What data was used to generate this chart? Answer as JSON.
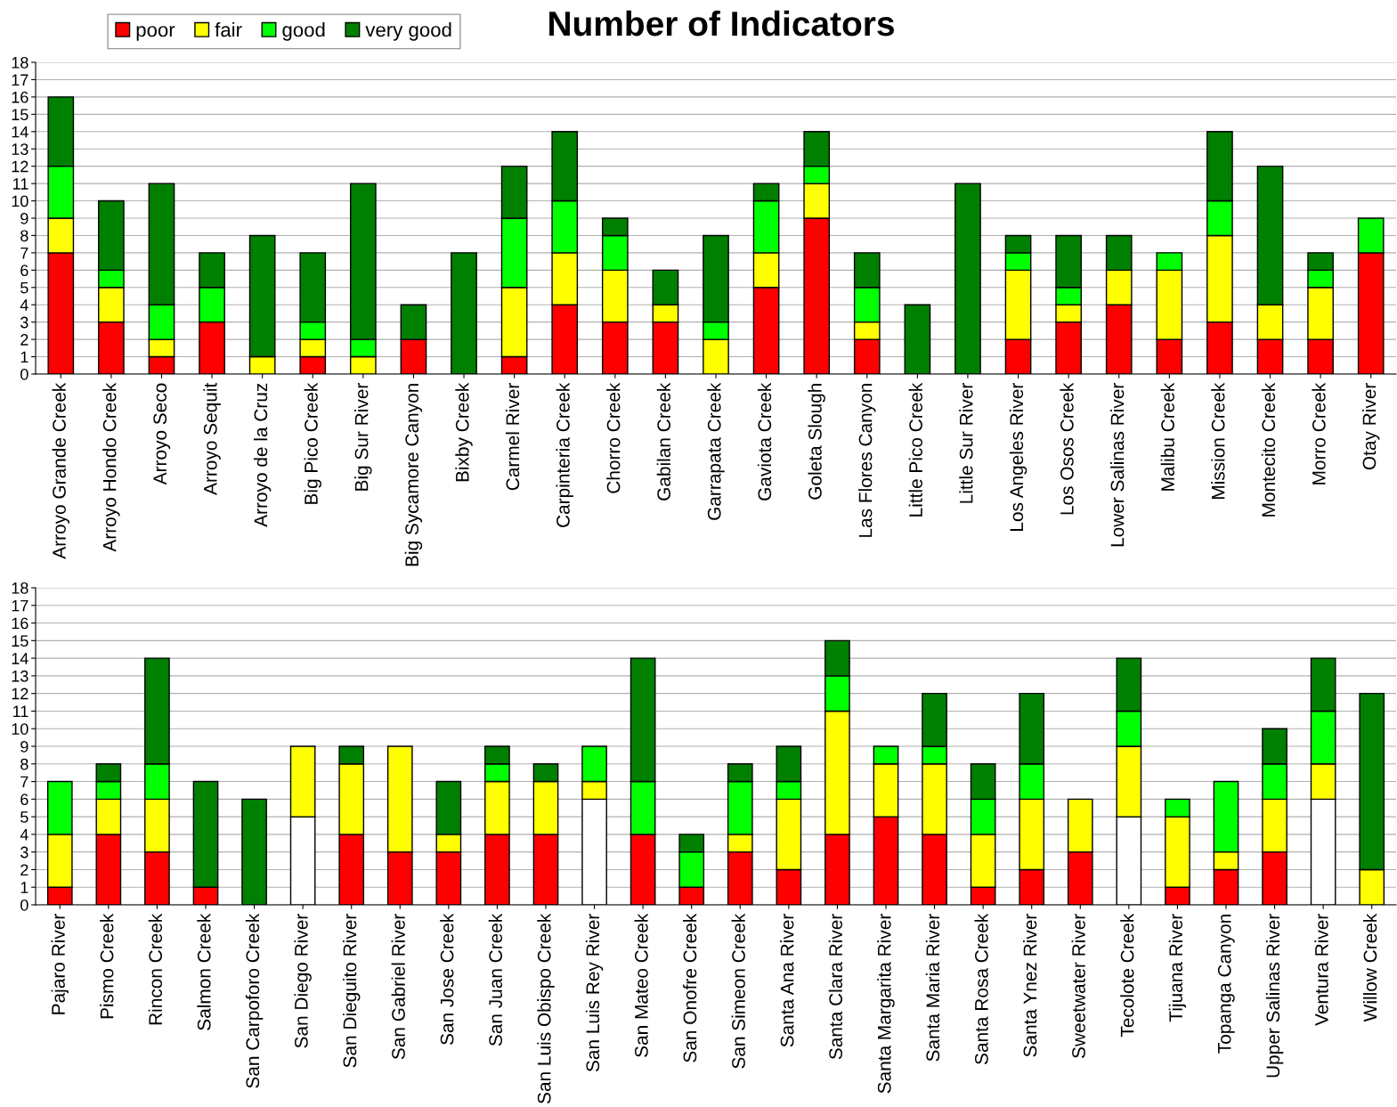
{
  "chart_data": [
    {
      "type": "bar",
      "stacked": true,
      "title": "Number of Indicators",
      "legend": "top left",
      "grid": "y",
      "ylim": [
        0,
        18
      ],
      "yticks": [
        0,
        1,
        2,
        3,
        4,
        5,
        6,
        7,
        8,
        9,
        10,
        11,
        12,
        13,
        14,
        15,
        16,
        17,
        18
      ],
      "categories": [
        "Arroyo Grande Creek",
        "Arroyo Hondo Creek",
        "Arroyo Seco",
        "Arroyo Sequit",
        "Arroyo de la Cruz",
        "Big Pico Creek",
        "Big Sur River",
        "Big Sycamore Canyon",
        "Bixby Creek",
        "Carmel River",
        "Carpinteria Creek",
        "Chorro Creek",
        "Gabilan Creek",
        "Garrapata Creek",
        "Gaviota Creek",
        "Goleta Slough",
        "Las Flores Canyon",
        "Little Pico Creek",
        "Little Sur River",
        "Los Angeles River",
        "Los Osos Creek",
        "Lower Salinas River",
        "Malibu Creek",
        "Mission Creek",
        "Montecito Creek",
        "Morro Creek",
        "Otay River"
      ],
      "series": [
        {
          "name": "poor",
          "color": "#ff0000",
          "values": [
            7,
            3,
            1,
            3,
            null,
            1,
            null,
            2,
            null,
            1,
            4,
            3,
            3,
            null,
            5,
            9,
            2,
            null,
            null,
            2,
            3,
            4,
            2,
            3,
            2,
            2,
            7
          ]
        },
        {
          "name": "fair",
          "color": "#ffff00",
          "values": [
            2,
            2,
            1,
            null,
            1,
            1,
            1,
            null,
            null,
            4,
            3,
            3,
            1,
            2,
            2,
            2,
            1,
            null,
            null,
            4,
            1,
            2,
            4,
            5,
            2,
            3,
            null
          ]
        },
        {
          "name": "good",
          "color": "#00ff00",
          "values": [
            3,
            1,
            2,
            2,
            null,
            1,
            1,
            null,
            null,
            4,
            3,
            2,
            null,
            1,
            3,
            1,
            2,
            null,
            null,
            1,
            1,
            null,
            1,
            2,
            null,
            1,
            2
          ]
        },
        {
          "name": "very good",
          "color": "#008000",
          "values": [
            4,
            4,
            7,
            2,
            7,
            4,
            9,
            2,
            7,
            3,
            4,
            1,
            2,
            5,
            1,
            2,
            2,
            4,
            11,
            1,
            3,
            2,
            null,
            4,
            8,
            1,
            null
          ]
        }
      ]
    },
    {
      "type": "bar",
      "stacked": true,
      "grid": "y",
      "ylim": [
        0,
        18
      ],
      "yticks": [
        0,
        1,
        2,
        3,
        4,
        5,
        6,
        7,
        8,
        9,
        10,
        11,
        12,
        13,
        14,
        15,
        16,
        17,
        18
      ],
      "categories": [
        "Pajaro River",
        "Pismo Creek",
        "Rincon Creek",
        "Salmon Creek",
        "San Carpoforo Creek",
        "San Diego River",
        "San Dieguito River",
        "San Gabriel River",
        "San Jose Creek",
        "San Juan Creek",
        "San Luis Obispo Creek",
        "San Luis Rey River",
        "San Mateo Creek",
        "San Onofre Creek",
        "San Simeon Creek",
        "Santa Ana River",
        "Santa Clara River",
        "Santa Margarita River",
        "Santa Maria River",
        "Santa Rosa Creek",
        "Santa Ynez River",
        "Sweetwater River",
        "Tecolote Creek",
        "Tijuana River",
        "Topanga Canyon",
        "Upper Salinas River",
        "Ventura River",
        "Willow Creek"
      ],
      "series": [
        {
          "color": "#ff0000",
          "colors": [
            "#ff0000",
            "#ff0000",
            "#ff0000",
            "#ff0000",
            "#ff0000",
            "#ffffff",
            "#ff0000",
            "#ff0000",
            "#ff0000",
            "#ff0000",
            "#ff0000",
            "#ffffff",
            "#ff0000",
            "#ff0000",
            "#ff0000",
            "#ff0000",
            "#ff0000",
            "#ff0000",
            "#ff0000",
            "#ff0000",
            "#ff0000",
            "#ff0000",
            "#ffffff",
            "#ff0000",
            "#ff0000",
            "#ff0000",
            "#ffffff",
            "#ff0000"
          ],
          "values": [
            1,
            4,
            3,
            1,
            null,
            5,
            4,
            3,
            3,
            4,
            4,
            6,
            4,
            1,
            3,
            2,
            4,
            5,
            4,
            1,
            2,
            3,
            5,
            1,
            2,
            3,
            6,
            null
          ]
        },
        {
          "color": "#ffff00",
          "values": [
            3,
            2,
            3,
            null,
            null,
            4,
            4,
            6,
            1,
            3,
            3,
            1,
            null,
            null,
            1,
            4,
            7,
            3,
            4,
            3,
            4,
            3,
            4,
            4,
            1,
            3,
            2,
            2
          ]
        },
        {
          "color": "#00ff00",
          "values": [
            3,
            1,
            2,
            null,
            null,
            null,
            null,
            null,
            null,
            1,
            null,
            2,
            3,
            2,
            3,
            1,
            2,
            1,
            1,
            2,
            2,
            null,
            2,
            1,
            4,
            2,
            3,
            null
          ]
        },
        {
          "color": "#008000",
          "values": [
            null,
            1,
            6,
            6,
            6,
            null,
            1,
            null,
            3,
            1,
            1,
            null,
            7,
            1,
            1,
            2,
            2,
            null,
            3,
            2,
            4,
            null,
            3,
            null,
            null,
            2,
            3,
            10
          ]
        }
      ]
    }
  ]
}
